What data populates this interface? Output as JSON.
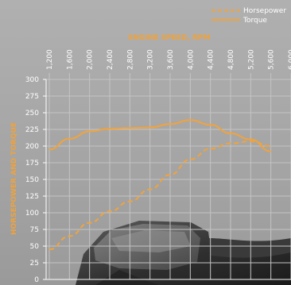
{
  "chart_data": {
    "type": "line",
    "title": "ENGINE SPEED, RPM",
    "xlabel": "ENGINE SPEED, RPM",
    "ylabel": "HORSEPOWER AND TORQUE",
    "xlim": [
      1200,
      6000
    ],
    "ylim": [
      0,
      300
    ],
    "x_ticks": [
      "1,200",
      "1,600",
      "2,000",
      "2,400",
      "2,800",
      "3,200",
      "3,600",
      "4,000",
      "4,400",
      "4,800",
      "5,200",
      "5,600",
      "6,000"
    ],
    "y_ticks": [
      "300",
      "275",
      "250",
      "225",
      "200",
      "175",
      "150",
      "125",
      "100",
      "75",
      "50",
      "25",
      "0"
    ],
    "grid": true,
    "legend_position": "top-right",
    "series": [
      {
        "name": "Horsepower",
        "color": "#f2a33a",
        "style": "dashed",
        "x": [
          1200,
          1600,
          2000,
          2400,
          2800,
          3200,
          3600,
          4000,
          4400,
          4800,
          5200,
          5600
        ],
        "values": [
          45,
          65,
          85,
          102,
          117,
          135,
          157,
          180,
          196,
          204,
          207,
          200
        ]
      },
      {
        "name": "Torque",
        "color": "#f2a33a",
        "style": "solid",
        "x": [
          1200,
          1600,
          2000,
          2400,
          2800,
          3200,
          3600,
          4000,
          4400,
          4800,
          5200,
          5600
        ],
        "values": [
          195,
          211,
          222,
          226,
          227,
          228,
          233,
          239,
          232,
          219,
          210,
          192
        ]
      }
    ]
  }
}
